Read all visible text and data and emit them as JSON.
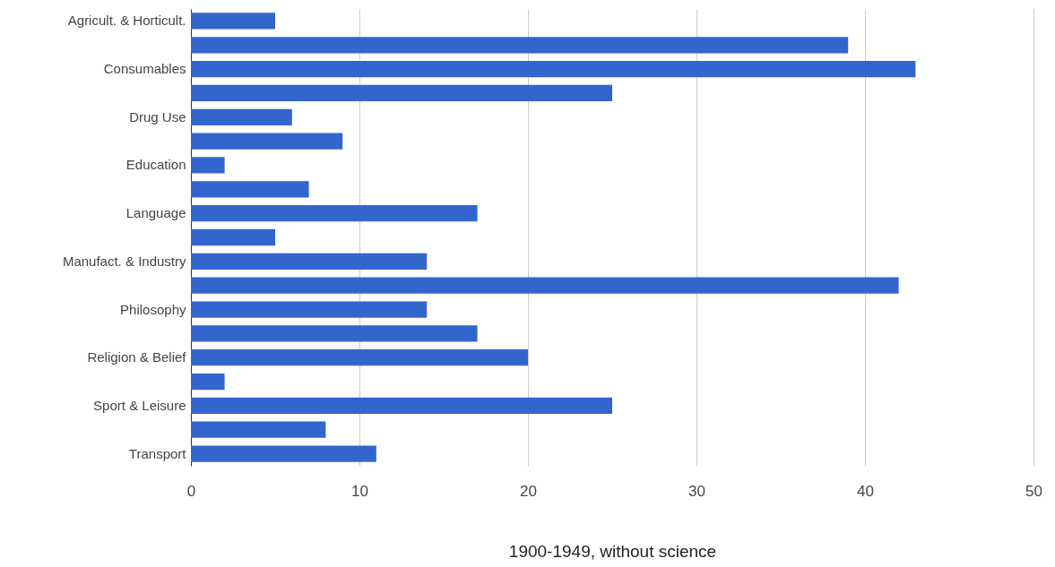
{
  "chart_data": {
    "type": "bar",
    "orientation": "horizontal",
    "xlabel": "1900-1949, without science",
    "categories": [
      "Agricult. & Horticult.",
      null,
      "Consumables",
      null,
      "Drug Use",
      null,
      "Education",
      null,
      "Language",
      null,
      "Manufact. & Industry",
      null,
      "Philosophy",
      null,
      "Religion & Belief",
      null,
      "Sport & Leisure",
      null,
      "Transport"
    ],
    "values": [
      5,
      39,
      43,
      25,
      6,
      9,
      2,
      7,
      17,
      5,
      14,
      42,
      14,
      17,
      20,
      2,
      25,
      8,
      11
    ],
    "color": "#3366cc",
    "xlim": [
      0,
      50
    ],
    "xticks": [
      0,
      10,
      20,
      30,
      40,
      50
    ],
    "grid": "x"
  }
}
